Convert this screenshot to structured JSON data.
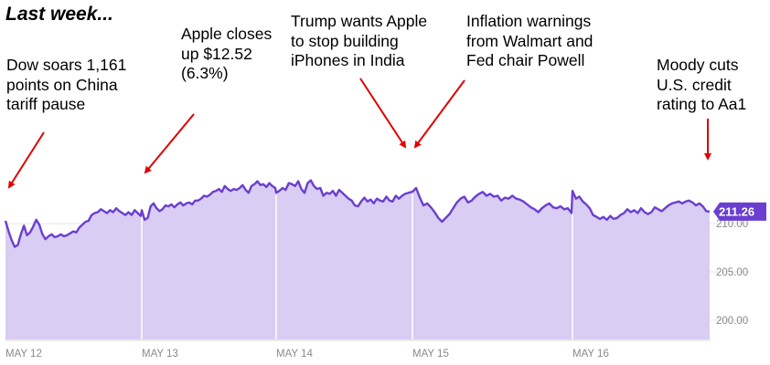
{
  "page": {
    "title": "Last week..."
  },
  "annotations": [
    {
      "id": "dow",
      "text": "Dow soars 1,161\npoints on China\ntariff pause"
    },
    {
      "id": "apple",
      "text": "Apple closes\nup $12.52\n(6.3%)"
    },
    {
      "id": "trump",
      "text": "Trump wants Apple\nto stop building\niPhones in India"
    },
    {
      "id": "inflation",
      "text": "Inflation warnings\nfrom Walmart and\nFed chair Powell"
    },
    {
      "id": "moody",
      "text": "Moody cuts\nU.S. credit\nrating to Aa1"
    }
  ],
  "colors": {
    "line": "#6a3fd0",
    "area": "#d9cdf3",
    "grid": "#e6e6e6",
    "divider": "#ffffff",
    "arrow": "#e00000",
    "badge": "#6a3fd0"
  },
  "chart_data": {
    "type": "area",
    "y_ticks": [
      "200.00",
      "205.00",
      "210.00"
    ],
    "ylim": [
      198,
      219
    ],
    "x_ticks": [
      "MAY 12",
      "MAY 13",
      "MAY 14",
      "MAY 15",
      "MAY 16"
    ],
    "last_value_label": "211.26",
    "grid": true,
    "series": [
      {
        "days": [
          {
            "label": "MAY 12",
            "values": [
              210.3,
              209.2,
              208.3,
              207.6,
              207.8,
              208.9,
              209.8,
              208.8,
              209.1,
              209.7,
              210.4,
              209.9,
              208.9,
              208.4,
              208.7,
              208.9,
              208.6,
              208.7,
              208.9,
              208.7,
              208.8,
              209.0,
              209.2,
              209.1,
              209.6,
              209.9,
              210.2,
              210.3,
              210.9,
              211.1,
              211.2,
              211.5,
              211.3,
              211.1,
              211.4,
              211.2,
              211.6,
              211.3,
              211.1,
              210.9,
              211.2,
              210.9,
              211.4,
              211.1,
              210.8
            ]
          },
          {
            "label": "MAY 13",
            "values": [
              211.4,
              210.4,
              210.6,
              211.8,
              212.1,
              211.6,
              211.3,
              211.5,
              211.9,
              211.8,
              212.0,
              211.7,
              212.0,
              212.2,
              211.9,
              212.1,
              212.2,
              212.0,
              212.4,
              212.4,
              212.6,
              212.9,
              212.8,
              213.0,
              213.3,
              213.4,
              213.6,
              213.3,
              213.9,
              213.6,
              213.4,
              213.6,
              213.5,
              213.7,
              214.0,
              213.5,
              213.2,
              213.9,
              214.1,
              214.4,
              214.0,
              214.1,
              213.8,
              214.2,
              213.9,
              213.7
            ]
          },
          {
            "label": "MAY 14",
            "values": [
              213.2,
              213.4,
              213.7,
              213.5,
              214.2,
              214.1,
              213.9,
              214.4,
              213.6,
              213.2,
              214.2,
              214.5,
              213.9,
              213.6,
              213.7,
              212.9,
              213.2,
              213.1,
              213.4,
              212.9,
              213.5,
              213.2,
              212.9,
              212.6,
              212.4,
              211.9,
              211.8,
              212.3,
              212.7,
              212.3,
              212.5,
              212.1,
              212.6,
              212.4,
              212.3,
              212.8,
              212.4,
              212.3,
              212.9,
              212.6,
              212.9,
              213.1,
              213.2,
              213.3
            ]
          },
          {
            "label": "MAY 15",
            "values": [
              213.3,
              213.7,
              212.7,
              211.9,
              212.1,
              211.7,
              211.2,
              210.6,
              210.2,
              210.6,
              211.0,
              211.6,
              212.2,
              212.6,
              212.8,
              212.2,
              212.4,
              212.8,
              213.1,
              213.3,
              212.9,
              213.1,
              212.8,
              212.9,
              212.4,
              212.7,
              212.6,
              212.9,
              212.6,
              212.5,
              212.3,
              212.0,
              211.7,
              211.5,
              211.2,
              211.6,
              211.9,
              212.1,
              211.7,
              211.6,
              211.8,
              211.5,
              211.6,
              211.1
            ]
          },
          {
            "label": "MAY 16",
            "values": [
              213.4,
              212.6,
              212.8,
              212.3,
              212.0,
              211.6,
              210.9,
              210.7,
              210.5,
              210.7,
              210.4,
              210.8,
              210.5,
              210.6,
              210.9,
              211.1,
              211.5,
              211.2,
              211.4,
              211.1,
              211.6,
              211.2,
              211.0,
              211.2,
              211.7,
              211.5,
              211.3,
              211.6,
              211.9,
              212.1,
              212.2,
              212.3,
              212.1,
              212.3,
              212.4,
              212.2,
              211.9,
              212.1,
              211.8,
              211.3,
              211.26
            ]
          }
        ]
      }
    ]
  }
}
